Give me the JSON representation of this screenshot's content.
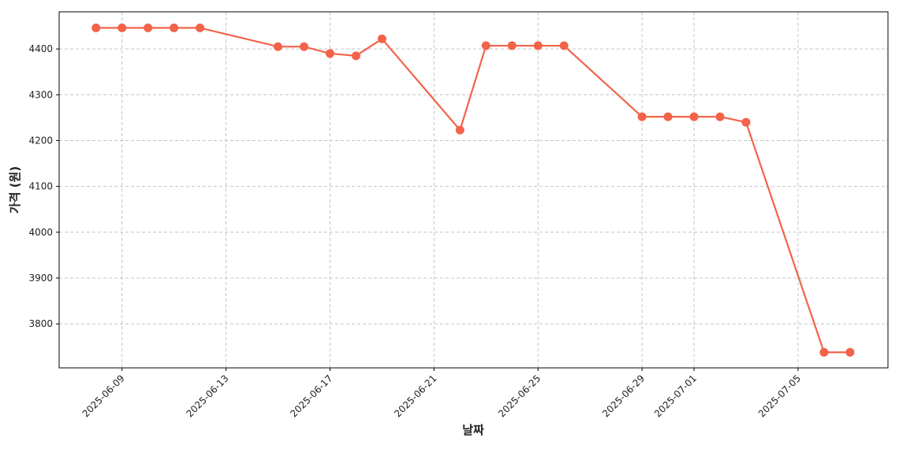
{
  "chart_data": {
    "type": "line",
    "x_label": "날짜",
    "y_label": "가격 (원)",
    "x": [
      "2025-06-08",
      "2025-06-09",
      "2025-06-10",
      "2025-06-11",
      "2025-06-12",
      "2025-06-15",
      "2025-06-16",
      "2025-06-17",
      "2025-06-18",
      "2025-06-19",
      "2025-06-22",
      "2025-06-23",
      "2025-06-24",
      "2025-06-25",
      "2025-06-26",
      "2025-06-29",
      "2025-06-30",
      "2025-07-01",
      "2025-07-02",
      "2025-07-03",
      "2025-07-06",
      "2025-07-07"
    ],
    "series": [
      {
        "color": "#f26349",
        "values": [
          4446,
          4446,
          4446,
          4446,
          4446,
          4405,
          4405,
          4390,
          4385,
          4422,
          4223,
          4407,
          4407,
          4407,
          4407,
          4252,
          4252,
          4252,
          4252,
          4240,
          3738,
          3738
        ]
      }
    ],
    "xlim": [
      "2025-06-06T14:00",
      "2025-07-08T11:00"
    ],
    "xticks": [
      "2025-06-09",
      "2025-06-13",
      "2025-06-17",
      "2025-06-21",
      "2025-06-25",
      "2025-06-29",
      "2025-07-01",
      "2025-07-05"
    ],
    "ylim": [
      3704,
      4481
    ],
    "yticks": [
      3800,
      3900,
      4000,
      4100,
      4200,
      4300,
      4400
    ],
    "grid": true
  }
}
